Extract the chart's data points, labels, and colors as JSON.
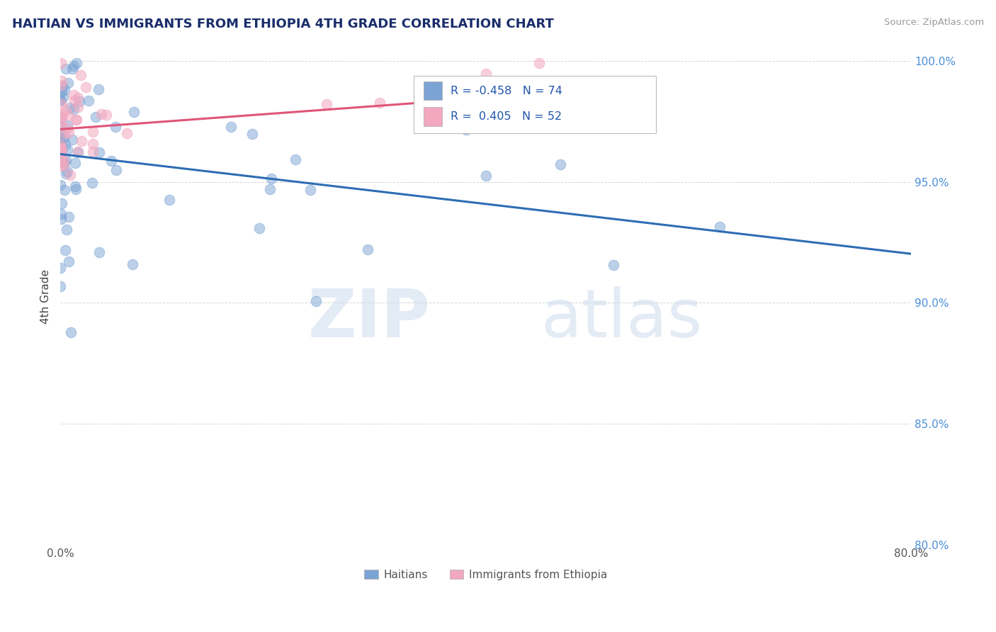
{
  "title": "HAITIAN VS IMMIGRANTS FROM ETHIOPIA 4TH GRADE CORRELATION CHART",
  "source": "Source: ZipAtlas.com",
  "ylabel": "4th Grade",
  "x_min": 0.0,
  "x_max": 0.8,
  "y_min": 0.8,
  "y_max": 1.005,
  "x_tick_positions": [
    0.0,
    0.1,
    0.2,
    0.3,
    0.4,
    0.5,
    0.6,
    0.7,
    0.8
  ],
  "x_tick_labels": [
    "0.0%",
    "",
    "",
    "",
    "",
    "",
    "",
    "",
    "80.0%"
  ],
  "y_tick_positions": [
    0.8,
    0.85,
    0.9,
    0.95,
    1.0
  ],
  "y_tick_labels": [
    "80.0%",
    "85.0%",
    "90.0%",
    "95.0%",
    "100.0%"
  ],
  "haitian_color": "#7ba3d4",
  "ethiopia_color": "#f2a8bf",
  "haitian_line_color": "#2e6db4",
  "ethiopia_line_color": "#e05578",
  "R_haitian": -0.458,
  "N_haitian": 74,
  "R_ethiopia": 0.405,
  "N_ethiopia": 52,
  "haitian_label": "Haitians",
  "ethiopia_label": "Immigrants from Ethiopia",
  "watermark_zip": "ZIP",
  "watermark_atlas": "atlas",
  "grid_color": "#cccccc",
  "title_color": "#1a2d6b",
  "source_color": "#999999",
  "ylabel_color": "#444444",
  "tick_color": "#555555",
  "right_tick_color": "#4a90d9",
  "legend_text_color": "#2255aa"
}
